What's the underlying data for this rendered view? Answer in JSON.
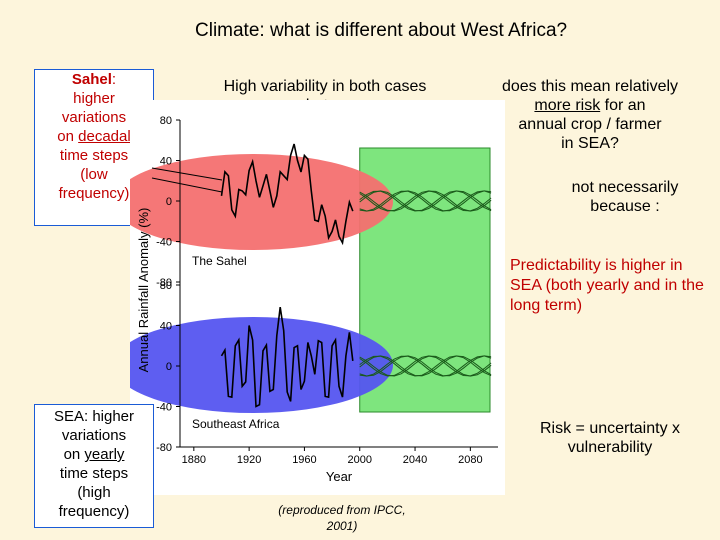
{
  "slide": {
    "title": "Climate: what is different about West Africa?",
    "sahel_box": {
      "label": "Sahel",
      "line1": "higher",
      "line2": "variations",
      "line3": "on",
      "line3_underlined": "decadal",
      "line4": "time steps",
      "line5": "(low",
      "line6": "frequency)"
    },
    "sea_box": {
      "label": "SEA: higher",
      "line1": "variations",
      "line2": "on",
      "line2_underlined": "yearly",
      "line3": "time steps",
      "line4": "(high",
      "line5": "frequency)"
    },
    "high_variability": {
      "line1": "High variability in both cases",
      "line2": "but…"
    },
    "risk_question": {
      "line1": "does this mean relatively",
      "line2_underlined": "more risk",
      "line2": "for an",
      "line3": "annual crop  / farmer",
      "line4": "in SEA?"
    },
    "not_necessarily": {
      "line1": "not necessarily",
      "line2": "because :"
    },
    "predictability": "Predictability is higher in SEA (both yearly and in the long term)",
    "risk_equation": {
      "line1": "Risk = uncertainty x",
      "line2": "vulnerability"
    },
    "credit": {
      "line1": "(reproduced from IPCC,",
      "line2": "2001)"
    },
    "colors": {
      "title": "#000000",
      "highlight_text": "#c00000",
      "sahel_ellipse": "#f47070",
      "sea_ellipse": "#5555f0",
      "future_box": "#7ee57e",
      "box_border": "#1a5bd6"
    }
  },
  "chart_data": {
    "type": "line",
    "ylabel": "Annual Rainfall Anomaly (%)",
    "xlabel": "Year",
    "xlim": [
      1870,
      2100
    ],
    "ylim": [
      -80,
      80
    ],
    "x_ticks": [
      1880,
      1920,
      1960,
      2000,
      2040,
      2080
    ],
    "panels": [
      {
        "name": "The Sahel",
        "y_ticks": [
          80,
          40,
          0,
          -40,
          -80
        ],
        "observed": {
          "x": [
            1900,
            1905,
            1910,
            1915,
            1920,
            1925,
            1930,
            1935,
            1940,
            1945,
            1950,
            1955,
            1960,
            1965,
            1970,
            1975,
            1980,
            1985,
            1990,
            1995
          ],
          "y": [
            5,
            25,
            -15,
            10,
            30,
            20,
            15,
            10,
            5,
            25,
            45,
            40,
            45,
            10,
            -20,
            -15,
            -30,
            -35,
            -20,
            -10
          ]
        },
        "scenario_spread": [
          -10,
          10
        ]
      },
      {
        "name": "Southeast Africa",
        "y_ticks": [
          80,
          40,
          0,
          -40,
          -80
        ],
        "observed": {
          "x": [
            1900,
            1905,
            1910,
            1915,
            1920,
            1925,
            1930,
            1935,
            1940,
            1945,
            1950,
            1955,
            1960,
            1965,
            1970,
            1975,
            1980,
            1985,
            1990,
            1995
          ],
          "y": [
            10,
            -30,
            20,
            -20,
            40,
            -40,
            15,
            -25,
            30,
            35,
            -35,
            20,
            -15,
            10,
            25,
            -30,
            20,
            -20,
            10,
            5
          ]
        },
        "scenario_spread": [
          -10,
          10
        ]
      }
    ],
    "future_period": [
      2000,
      2100
    ]
  }
}
